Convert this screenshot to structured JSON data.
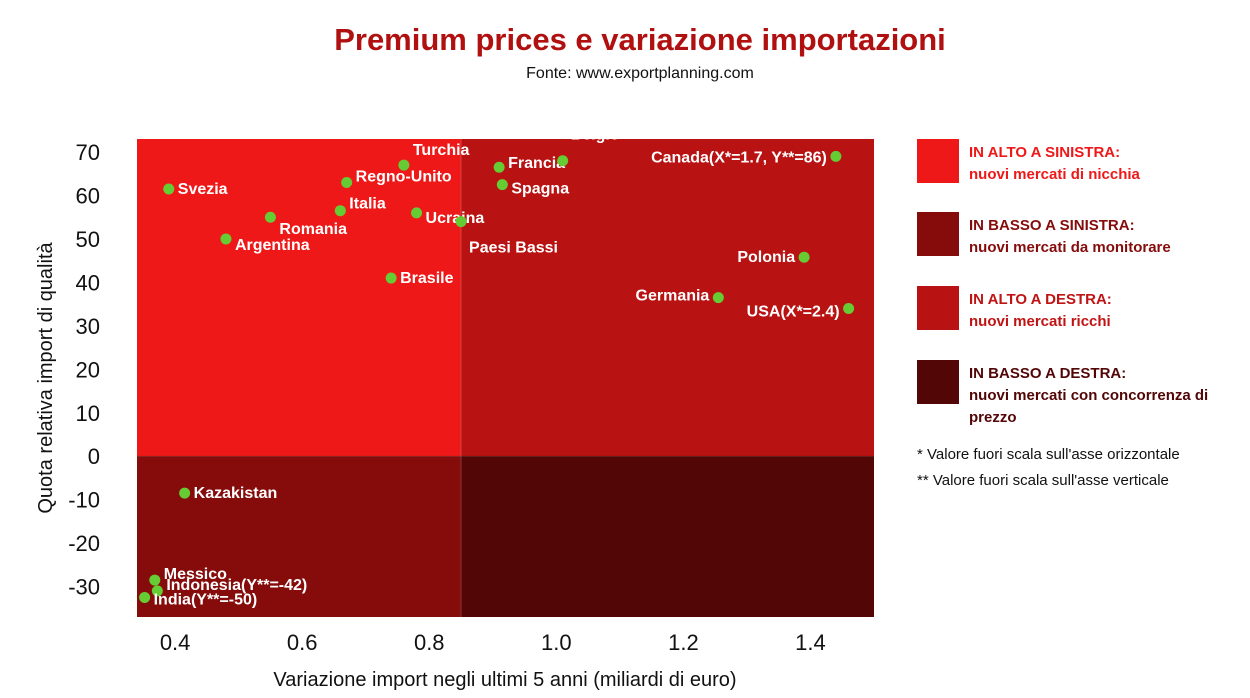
{
  "header": {
    "title": "Premium prices e variazione importazioni",
    "subtitle": "Fonte: www.exportplanning.com"
  },
  "colors": {
    "title": "#b01010",
    "quadrant_top_left": "#ee1818",
    "quadrant_bottom_left": "#860c0c",
    "quadrant_top_right": "#b81212",
    "quadrant_bottom_right": "#520606",
    "point": "#66cc33",
    "legend_text_top_left": "#ee1818",
    "legend_text_bottom_left": "#860c0c",
    "legend_text_top_right": "#c01414",
    "legend_text_bottom_right": "#520606"
  },
  "legend": {
    "items": [
      {
        "title": "IN ALTO A SINISTRA:",
        "desc": "nuovi mercati di nicchia"
      },
      {
        "title": "IN BASSO A SINISTRA:",
        "desc": "nuovi mercati da monitorare"
      },
      {
        "title": "IN ALTO A DESTRA:",
        "desc": "nuovi mercati ricchi"
      },
      {
        "title": "IN BASSO A DESTRA:",
        "desc": "nuovi mercati con concorrenza di prezzo"
      }
    ],
    "note_x": "* Valore fuori scala sull'asse orizzontale",
    "note_y": "** Valore fuori scala sull'asse verticale"
  },
  "chart_data": {
    "type": "scatter",
    "title": "Premium prices e variazione importazioni",
    "subtitle": "Fonte: www.exportplanning.com",
    "xlabel": "Variazione import negli ultimi 5 anni (miliardi di euro)",
    "ylabel": "Quota relativa import di qualità",
    "xlim": [
      0.34,
      1.5
    ],
    "ylim": [
      -37,
      73
    ],
    "x_ticks": [
      0.4,
      0.6,
      0.8,
      1.0,
      1.2,
      1.4
    ],
    "x_tick_labels": [
      "0.4",
      "0.6",
      "0.8",
      "1.0",
      "1.2",
      "1.4"
    ],
    "y_ticks": [
      -30,
      -20,
      -10,
      0,
      10,
      20,
      30,
      40,
      50,
      60,
      70
    ],
    "y_tick_labels": [
      "-30",
      "-20",
      "-10",
      "0",
      "10",
      "20",
      "30",
      "40",
      "50",
      "60",
      "70"
    ],
    "x_divider": 0.85,
    "y_divider": 0,
    "points": [
      {
        "label": "Svezia",
        "x": 0.39,
        "y": 61.5
      },
      {
        "label": "Argentina",
        "x": 0.48,
        "y": 50
      },
      {
        "label": "Romania",
        "x": 0.55,
        "y": 55
      },
      {
        "label": "Italia",
        "x": 0.66,
        "y": 56.5
      },
      {
        "label": "Regno-Unito",
        "x": 0.67,
        "y": 63
      },
      {
        "label": "Turchia",
        "x": 0.76,
        "y": 67
      },
      {
        "label": "Ucraina",
        "x": 0.78,
        "y": 56
      },
      {
        "label": "Brasile",
        "x": 0.74,
        "y": 41
      },
      {
        "label": "Paesi Bassi",
        "x": 0.85,
        "y": 54
      },
      {
        "label": "Francia",
        "x": 0.91,
        "y": 66.5
      },
      {
        "label": "Spagna",
        "x": 0.915,
        "y": 62.5
      },
      {
        "label": "Belgio",
        "x": 1.01,
        "y": 68
      },
      {
        "label": "Canada(X*=1.7, Y**=86)",
        "x": 1.44,
        "y": 69
      },
      {
        "label": "Polonia",
        "x": 1.39,
        "y": 45.8
      },
      {
        "label": "Germania",
        "x": 1.255,
        "y": 36.5
      },
      {
        "label": "USA(X*=2.4)",
        "x": 1.46,
        "y": 34
      },
      {
        "label": "Kazakistan",
        "x": 0.415,
        "y": -8.5
      },
      {
        "label": "Messico",
        "x": 0.368,
        "y": -28.5
      },
      {
        "label": "Indonesia(Y**=-42)",
        "x": 0.372,
        "y": -31
      },
      {
        "label": "India(Y**=-50)",
        "x": 0.352,
        "y": -32.5
      }
    ]
  }
}
